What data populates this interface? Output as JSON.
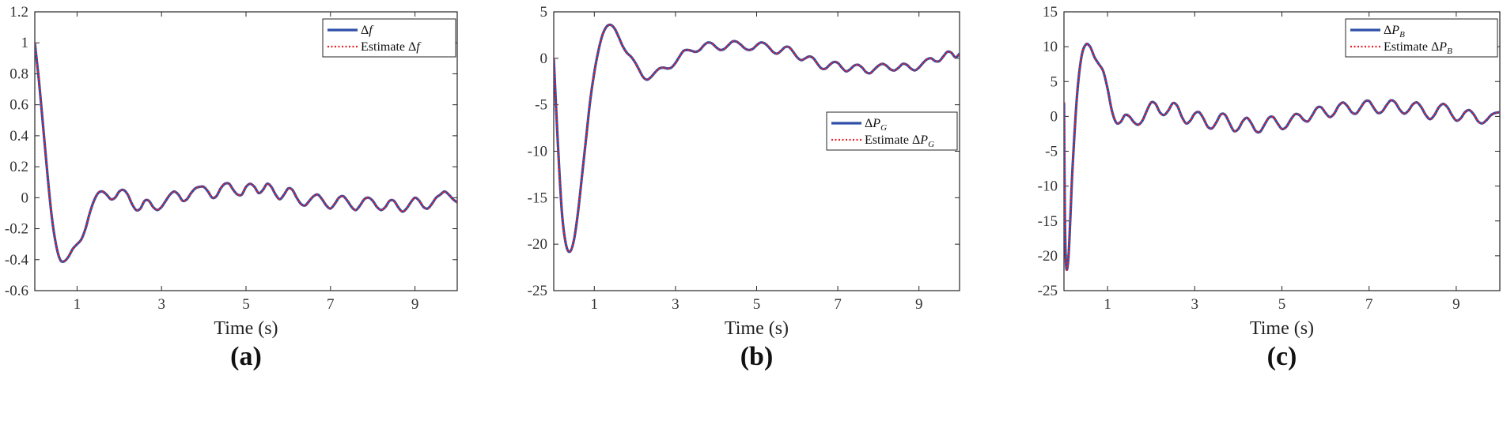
{
  "chart_data": [
    {
      "type": "line",
      "panel_label": "(a)",
      "xlabel": "Time (s)",
      "ylabel": "",
      "xlim": [
        0,
        10
      ],
      "ylim": [
        -0.6,
        1.2
      ],
      "xticks": [
        "1",
        "3",
        "5",
        "7",
        "9"
      ],
      "yticks": [
        "-0.6",
        "-0.4",
        "-0.2",
        "0",
        "0.2",
        "0.4",
        "0.6",
        "0.8",
        "1",
        "1.2"
      ],
      "legend_position": "top-right",
      "series": [
        {
          "name": "Δf",
          "legend_prefix": "Δ",
          "legend_var": "f",
          "legend_sub": "",
          "style": "solid",
          "color": "#2f4fa8"
        },
        {
          "name": "Estimate Δf",
          "legend_prefix": "Estimate Δ",
          "legend_var": "f",
          "legend_sub": "",
          "style": "dotted",
          "color": "#e8202a"
        }
      ],
      "x": [
        0,
        0.1,
        0.2,
        0.3,
        0.4,
        0.5,
        0.6,
        0.7,
        0.8,
        0.9,
        1.0,
        1.1,
        1.2,
        1.3,
        1.4,
        1.5,
        1.6,
        1.7,
        1.8,
        1.9,
        2.0,
        2.1,
        2.2,
        2.3,
        2.4,
        2.5,
        2.6,
        2.7,
        2.8,
        2.9,
        3.0,
        3.1,
        3.2,
        3.3,
        3.4,
        3.5,
        3.6,
        3.7,
        3.8,
        3.9,
        4.0,
        4.1,
        4.2,
        4.3,
        4.4,
        4.5,
        4.6,
        4.7,
        4.8,
        4.9,
        5.0,
        5.1,
        5.2,
        5.3,
        5.4,
        5.5,
        5.6,
        5.7,
        5.8,
        5.9,
        6.0,
        6.1,
        6.2,
        6.3,
        6.4,
        6.5,
        6.6,
        6.7,
        6.8,
        6.9,
        7.0,
        7.1,
        7.2,
        7.3,
        7.4,
        7.5,
        7.6,
        7.7,
        7.8,
        7.9,
        8.0,
        8.1,
        8.2,
        8.3,
        8.4,
        8.5,
        8.6,
        8.7,
        8.8,
        8.9,
        9.0,
        9.1,
        9.2,
        9.3,
        9.4,
        9.5,
        9.6,
        9.7,
        9.8,
        9.9,
        10.0
      ],
      "y": [
        1.0,
        0.75,
        0.45,
        0.15,
        -0.12,
        -0.3,
        -0.4,
        -0.41,
        -0.38,
        -0.33,
        -0.3,
        -0.27,
        -0.2,
        -0.1,
        -0.02,
        0.03,
        0.04,
        0.02,
        -0.01,
        0.0,
        0.04,
        0.05,
        0.02,
        -0.04,
        -0.08,
        -0.07,
        -0.02,
        -0.02,
        -0.06,
        -0.08,
        -0.06,
        -0.02,
        0.02,
        0.04,
        0.02,
        -0.02,
        -0.01,
        0.03,
        0.06,
        0.07,
        0.07,
        0.04,
        0.0,
        0.01,
        0.06,
        0.09,
        0.09,
        0.05,
        0.02,
        0.02,
        0.07,
        0.09,
        0.07,
        0.03,
        0.05,
        0.09,
        0.07,
        0.02,
        -0.01,
        0.02,
        0.06,
        0.05,
        0.0,
        -0.04,
        -0.05,
        -0.02,
        0.01,
        0.02,
        -0.01,
        -0.05,
        -0.07,
        -0.04,
        0.0,
        0.01,
        -0.02,
        -0.06,
        -0.08,
        -0.05,
        -0.01,
        0.0,
        -0.02,
        -0.06,
        -0.08,
        -0.06,
        -0.02,
        -0.02,
        -0.06,
        -0.09,
        -0.07,
        -0.03,
        0.0,
        -0.02,
        -0.06,
        -0.07,
        -0.04,
        0.0,
        0.02,
        0.04,
        0.02,
        -0.01,
        -0.03
      ]
    },
    {
      "type": "line",
      "panel_label": "(b)",
      "xlabel": "Time (s)",
      "ylabel": "",
      "xlim": [
        0,
        10
      ],
      "ylim": [
        -25,
        5
      ],
      "xticks": [
        "1",
        "3",
        "5",
        "7",
        "9"
      ],
      "yticks": [
        "-25",
        "-20",
        "-15",
        "-10",
        "-5",
        "0",
        "5"
      ],
      "legend_position": "center-right",
      "series": [
        {
          "name": "ΔP_G",
          "legend_prefix": "Δ",
          "legend_var": "P",
          "legend_sub": "G",
          "style": "solid",
          "color": "#2f4fa8"
        },
        {
          "name": "Estimate ΔP_G",
          "legend_prefix": "Estimate Δ",
          "legend_var": "P",
          "legend_sub": "G",
          "style": "dotted",
          "color": "#e8202a"
        }
      ],
      "x": [
        0,
        0.1,
        0.2,
        0.3,
        0.4,
        0.5,
        0.6,
        0.7,
        0.8,
        0.9,
        1.0,
        1.1,
        1.2,
        1.3,
        1.4,
        1.5,
        1.6,
        1.7,
        1.8,
        1.9,
        2.0,
        2.1,
        2.2,
        2.3,
        2.4,
        2.5,
        2.6,
        2.7,
        2.8,
        2.9,
        3.0,
        3.1,
        3.2,
        3.3,
        3.4,
        3.5,
        3.6,
        3.7,
        3.8,
        3.9,
        4.0,
        4.1,
        4.2,
        4.3,
        4.4,
        4.5,
        4.6,
        4.7,
        4.8,
        4.9,
        5.0,
        5.1,
        5.2,
        5.3,
        5.4,
        5.5,
        5.6,
        5.7,
        5.8,
        5.9,
        6.0,
        6.1,
        6.2,
        6.3,
        6.4,
        6.5,
        6.6,
        6.7,
        6.8,
        6.9,
        7.0,
        7.1,
        7.2,
        7.3,
        7.4,
        7.5,
        7.6,
        7.7,
        7.8,
        7.9,
        8.0,
        8.1,
        8.2,
        8.3,
        8.4,
        8.5,
        8.6,
        8.7,
        8.8,
        8.9,
        9.0,
        9.1,
        9.2,
        9.3,
        9.4,
        9.5,
        9.6,
        9.7,
        9.8,
        9.9,
        10.0
      ],
      "y": [
        0.0,
        -9.0,
        -16.5,
        -20.0,
        -20.8,
        -19.5,
        -16.5,
        -12.5,
        -8.5,
        -4.5,
        -1.5,
        0.8,
        2.5,
        3.4,
        3.6,
        3.2,
        2.3,
        1.3,
        0.6,
        0.2,
        -0.4,
        -1.2,
        -2.0,
        -2.3,
        -2.0,
        -1.5,
        -1.1,
        -1.0,
        -1.1,
        -1.0,
        -0.5,
        0.2,
        0.8,
        0.9,
        0.8,
        0.7,
        0.9,
        1.4,
        1.7,
        1.6,
        1.2,
        0.9,
        1.0,
        1.4,
        1.8,
        1.8,
        1.5,
        1.1,
        0.9,
        1.0,
        1.4,
        1.7,
        1.6,
        1.2,
        0.7,
        0.5,
        0.8,
        1.2,
        1.2,
        0.7,
        0.1,
        -0.2,
        0.0,
        0.2,
        0.0,
        -0.6,
        -1.1,
        -1.1,
        -0.7,
        -0.4,
        -0.5,
        -1.0,
        -1.4,
        -1.2,
        -0.8,
        -0.7,
        -1.0,
        -1.5,
        -1.6,
        -1.2,
        -0.8,
        -0.6,
        -0.8,
        -1.2,
        -1.3,
        -1.0,
        -0.6,
        -0.7,
        -1.1,
        -1.3,
        -1.0,
        -0.5,
        -0.1,
        0.0,
        -0.3,
        -0.3,
        0.2,
        0.7,
        0.6,
        0.1,
        0.5
      ]
    },
    {
      "type": "line",
      "panel_label": "(c)",
      "xlabel": "Time (s)",
      "ylabel": "",
      "xlim": [
        0,
        10
      ],
      "ylim": [
        -25,
        15
      ],
      "xticks": [
        "1",
        "3",
        "5",
        "7",
        "9"
      ],
      "yticks": [
        "-25",
        "-20",
        "-15",
        "-10",
        "-5",
        "0",
        "5",
        "10",
        "15"
      ],
      "legend_position": "top-right",
      "series": [
        {
          "name": "ΔP_B",
          "legend_prefix": "Δ",
          "legend_var": "P",
          "legend_sub": "B",
          "style": "solid",
          "color": "#2f4fa8"
        },
        {
          "name": "Estimate ΔP_B",
          "legend_prefix": "Estimate Δ",
          "legend_var": "P",
          "legend_sub": "B",
          "style": "dotted",
          "color": "#e8202a"
        }
      ],
      "x": [
        0,
        0.02,
        0.05,
        0.1,
        0.15,
        0.2,
        0.3,
        0.4,
        0.5,
        0.6,
        0.7,
        0.8,
        0.9,
        1.0,
        1.1,
        1.2,
        1.3,
        1.4,
        1.5,
        1.6,
        1.7,
        1.8,
        1.9,
        2.0,
        2.1,
        2.2,
        2.3,
        2.4,
        2.5,
        2.6,
        2.7,
        2.8,
        2.9,
        3.0,
        3.1,
        3.2,
        3.3,
        3.4,
        3.5,
        3.6,
        3.7,
        3.8,
        3.9,
        4.0,
        4.1,
        4.2,
        4.3,
        4.4,
        4.5,
        4.6,
        4.7,
        4.8,
        4.9,
        5.0,
        5.1,
        5.2,
        5.3,
        5.4,
        5.5,
        5.6,
        5.7,
        5.8,
        5.9,
        6.0,
        6.1,
        6.2,
        6.3,
        6.4,
        6.5,
        6.6,
        6.7,
        6.8,
        6.9,
        7.0,
        7.1,
        7.2,
        7.3,
        7.4,
        7.5,
        7.6,
        7.7,
        7.8,
        7.9,
        8.0,
        8.1,
        8.2,
        8.3,
        8.4,
        8.5,
        8.6,
        8.7,
        8.8,
        8.9,
        9.0,
        9.1,
        9.2,
        9.3,
        9.4,
        9.5,
        9.6,
        9.7,
        9.8,
        9.9,
        10.0
      ],
      "y": [
        2.0,
        -14.0,
        -21.5,
        -20.5,
        -14.0,
        -7.0,
        3.0,
        8.5,
        10.3,
        10.0,
        8.5,
        7.5,
        6.5,
        4.0,
        0.8,
        -0.9,
        -0.8,
        0.2,
        0.0,
        -0.8,
        -1.2,
        -0.6,
        0.8,
        2.0,
        1.8,
        0.6,
        0.2,
        0.9,
        1.9,
        1.5,
        0.0,
        -1.0,
        -0.6,
        0.4,
        0.6,
        -0.3,
        -1.5,
        -1.7,
        -0.8,
        0.3,
        0.2,
        -1.0,
        -2.1,
        -1.8,
        -0.7,
        -0.2,
        -1.0,
        -2.1,
        -2.2,
        -1.2,
        -0.2,
        -0.1,
        -1.0,
        -1.8,
        -1.5,
        -0.5,
        0.3,
        0.2,
        -0.5,
        -0.7,
        0.2,
        1.2,
        1.3,
        0.5,
        -0.1,
        0.4,
        1.5,
        2.0,
        1.5,
        0.6,
        0.4,
        1.2,
        2.1,
        2.2,
        1.3,
        0.5,
        0.7,
        1.6,
        2.3,
        2.0,
        1.0,
        0.4,
        0.8,
        1.7,
        2.0,
        1.3,
        0.2,
        -0.4,
        0.2,
        1.3,
        1.8,
        1.3,
        0.2,
        -0.6,
        -0.3,
        0.6,
        0.9,
        0.3,
        -0.7,
        -1.0,
        -0.5,
        0.2,
        0.5,
        0.6
      ]
    }
  ]
}
